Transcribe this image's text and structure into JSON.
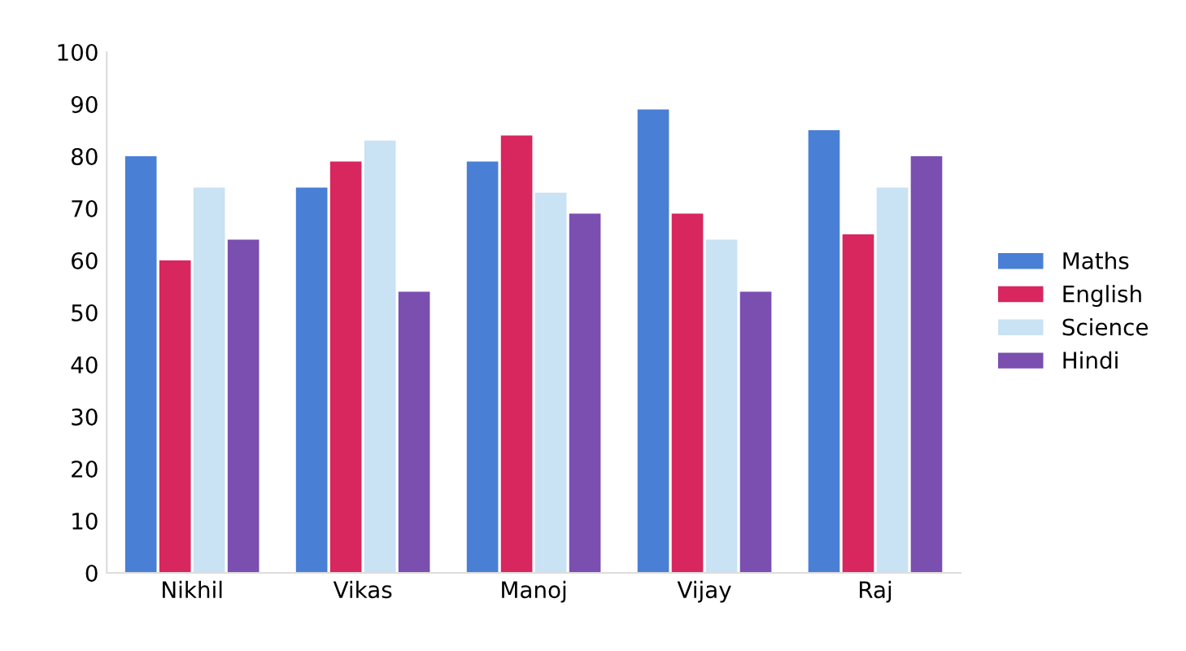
{
  "chart_data": {
    "type": "bar",
    "categories": [
      "Nikhil",
      "Vikas",
      "Manoj",
      "Vijay",
      "Raj"
    ],
    "series": [
      {
        "name": "Maths",
        "color": "#4a7fd6",
        "values": [
          80,
          74,
          79,
          89,
          85
        ]
      },
      {
        "name": "English",
        "color": "#d8265f",
        "values": [
          60,
          79,
          84,
          69,
          65
        ]
      },
      {
        "name": "Science",
        "color": "#c9e2f4",
        "values": [
          74,
          83,
          73,
          64,
          74
        ]
      },
      {
        "name": "Hindi",
        "color": "#7a4fb0",
        "values": [
          64,
          54,
          69,
          54,
          80
        ]
      }
    ],
    "ylim": [
      0,
      100
    ],
    "yticks": [
      0,
      10,
      20,
      30,
      40,
      50,
      60,
      70,
      80,
      90,
      100
    ],
    "grid": false,
    "legend": "right"
  }
}
